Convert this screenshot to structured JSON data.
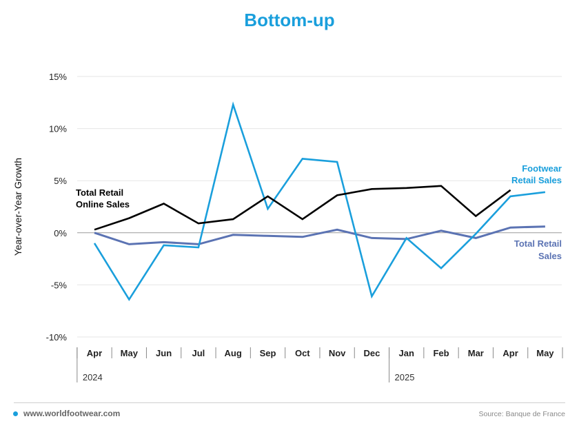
{
  "header": {
    "title": "Bottom-up"
  },
  "footer": {
    "url": "www.worldfootwear.com",
    "source": "Source: Banque de France"
  },
  "colors": {
    "title": "#1a9fdc",
    "footwear": "#1a9fdc",
    "online": "#000000",
    "retail": "#5b73b3"
  },
  "chart_data": {
    "type": "line",
    "title": "Bottom-up",
    "ylabel": "Year-over-Year Growth",
    "xlabel": "",
    "ylim": [
      -10,
      15
    ],
    "yticks": [
      15,
      10,
      5,
      0,
      -5,
      -10
    ],
    "ytick_labels": [
      "15%",
      "10%",
      "5%",
      "0%",
      "-5%",
      "-10%"
    ],
    "categories": [
      "Apr",
      "May",
      "Jun",
      "Jul",
      "Aug",
      "Sep",
      "Oct",
      "Nov",
      "Dec",
      "Jan",
      "Feb",
      "Mar",
      "Apr",
      "May"
    ],
    "year_labels": [
      {
        "label": "2024",
        "start_index": 0
      },
      {
        "label": "2025",
        "start_index": 9
      }
    ],
    "grid": true,
    "series": [
      {
        "name": "Total Retail Online Sales",
        "label_lines": [
          "Total Retail",
          "Online Sales"
        ],
        "color": "#000000",
        "values": [
          0.3,
          1.4,
          2.8,
          0.9,
          1.3,
          3.5,
          1.3,
          3.6,
          4.2,
          4.3,
          4.5,
          1.6,
          4.1,
          null
        ]
      },
      {
        "name": "Footwear Retail Sales",
        "label_lines": [
          "Footwear",
          "Retail Sales"
        ],
        "color": "#1a9fdc",
        "values": [
          -1.0,
          -6.4,
          -1.2,
          -1.4,
          12.3,
          2.3,
          7.1,
          6.8,
          -6.1,
          -0.5,
          -3.4,
          -0.1,
          3.5,
          3.9
        ]
      },
      {
        "name": "Total Retail Sales",
        "label_lines": [
          "Total Retail",
          "Sales"
        ],
        "color": "#5b73b3",
        "values": [
          0.0,
          -1.1,
          -0.9,
          -1.1,
          -0.2,
          -0.3,
          -0.4,
          0.3,
          -0.5,
          -0.6,
          0.2,
          -0.5,
          0.5,
          0.6
        ]
      }
    ]
  }
}
